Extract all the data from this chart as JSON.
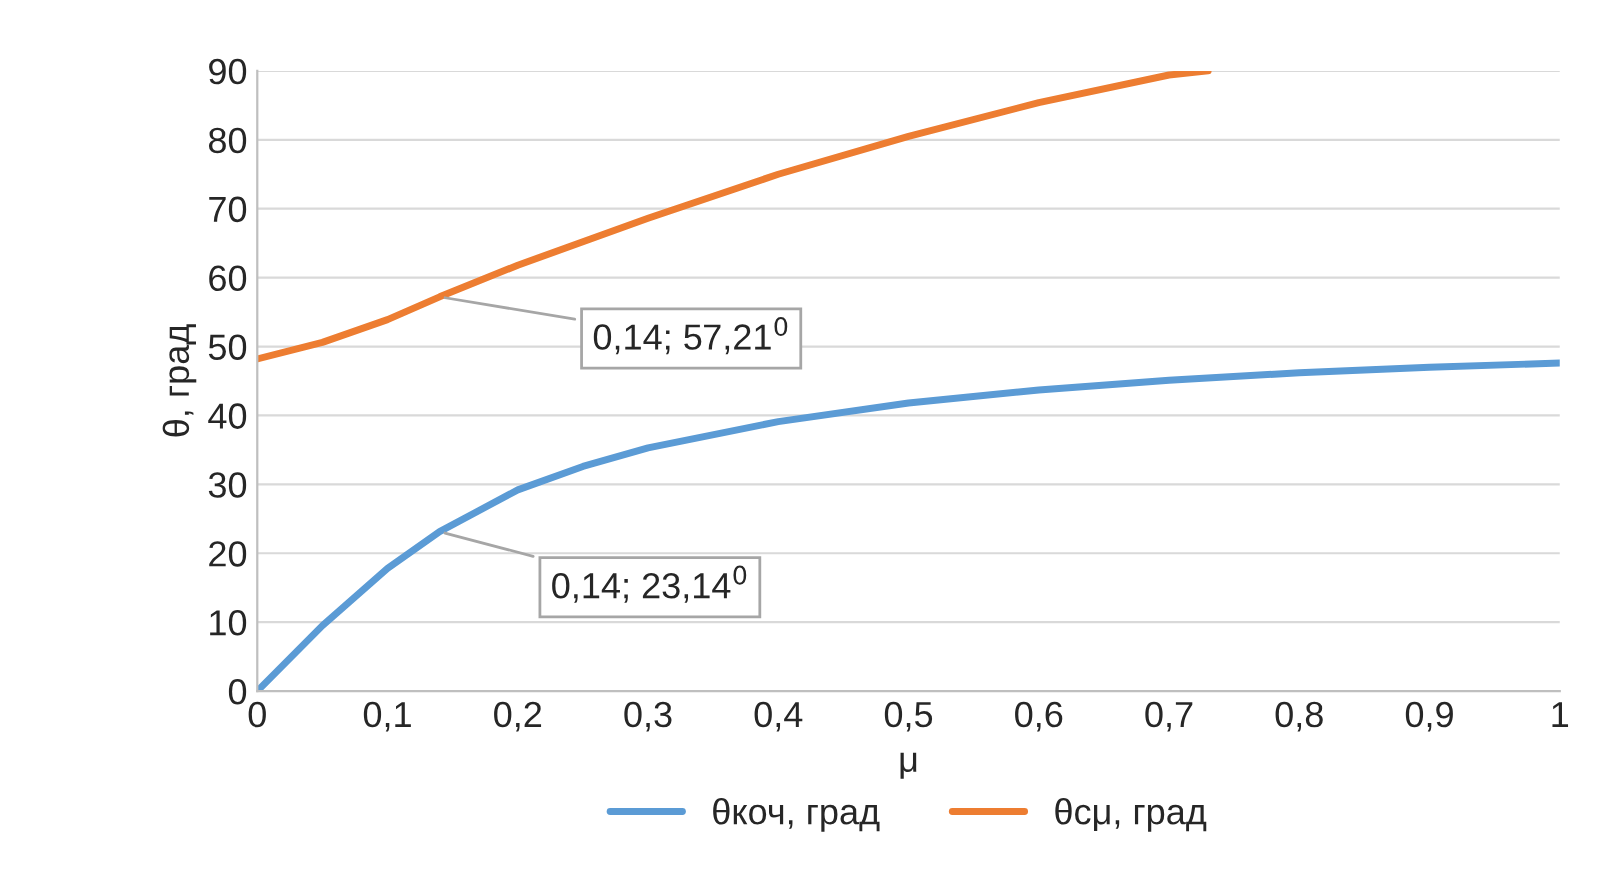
{
  "chart_data": {
    "type": "line",
    "xlabel": "μ",
    "ylabel": "θ, град",
    "xlim": [
      0,
      1
    ],
    "ylim": [
      0,
      90
    ],
    "xticks": [
      0,
      {
        "value": 0.1,
        "label": "0,1"
      },
      {
        "value": 0.2,
        "label": "0,2"
      },
      {
        "value": 0.3,
        "label": "0,3"
      },
      {
        "value": 0.4,
        "label": "0,4"
      },
      {
        "value": 0.5,
        "label": "0,5"
      },
      {
        "value": 0.6,
        "label": "0,6"
      },
      {
        "value": 0.7,
        "label": "0,7"
      },
      {
        "value": 0.8,
        "label": "0,8"
      },
      {
        "value": 0.9,
        "label": "0,9"
      },
      1
    ],
    "yticks": [
      0,
      10,
      20,
      30,
      40,
      50,
      60,
      70,
      80,
      90
    ],
    "grid": "y",
    "legend": "bottom",
    "marker": "none",
    "line_style": "solid",
    "series": [
      {
        "name": "θкоч, град",
        "color": "#5b9bd5",
        "x": [
          0,
          0.05,
          0.1,
          0.14,
          0.2,
          0.25,
          0.3,
          0.4,
          0.5,
          0.6,
          0.7,
          0.8,
          0.9,
          1
        ],
        "values": [
          0,
          9.5,
          17.8,
          23.14,
          29.2,
          32.6,
          35.3,
          39.1,
          41.8,
          43.7,
          45.1,
          46.2,
          47,
          47.6
        ]
      },
      {
        "name": "θсμ, град",
        "color": "#ed7d31",
        "x": [
          0,
          0.05,
          0.1,
          0.14,
          0.2,
          0.3,
          0.4,
          0.5,
          0.6,
          0.7,
          0.73
        ],
        "values": [
          48.2,
          50.6,
          53.9,
          57.21,
          61.8,
          68.6,
          75,
          80.5,
          85.4,
          89.4,
          90
        ]
      }
    ],
    "annotations": [
      {
        "text": "0,14; 57,21$^{0}$",
        "x": 0.14,
        "y": 57.21
      },
      {
        "text": "0,14; 23,14$^{0}$",
        "x": 0.14,
        "y": 23.14
      }
    ]
  }
}
